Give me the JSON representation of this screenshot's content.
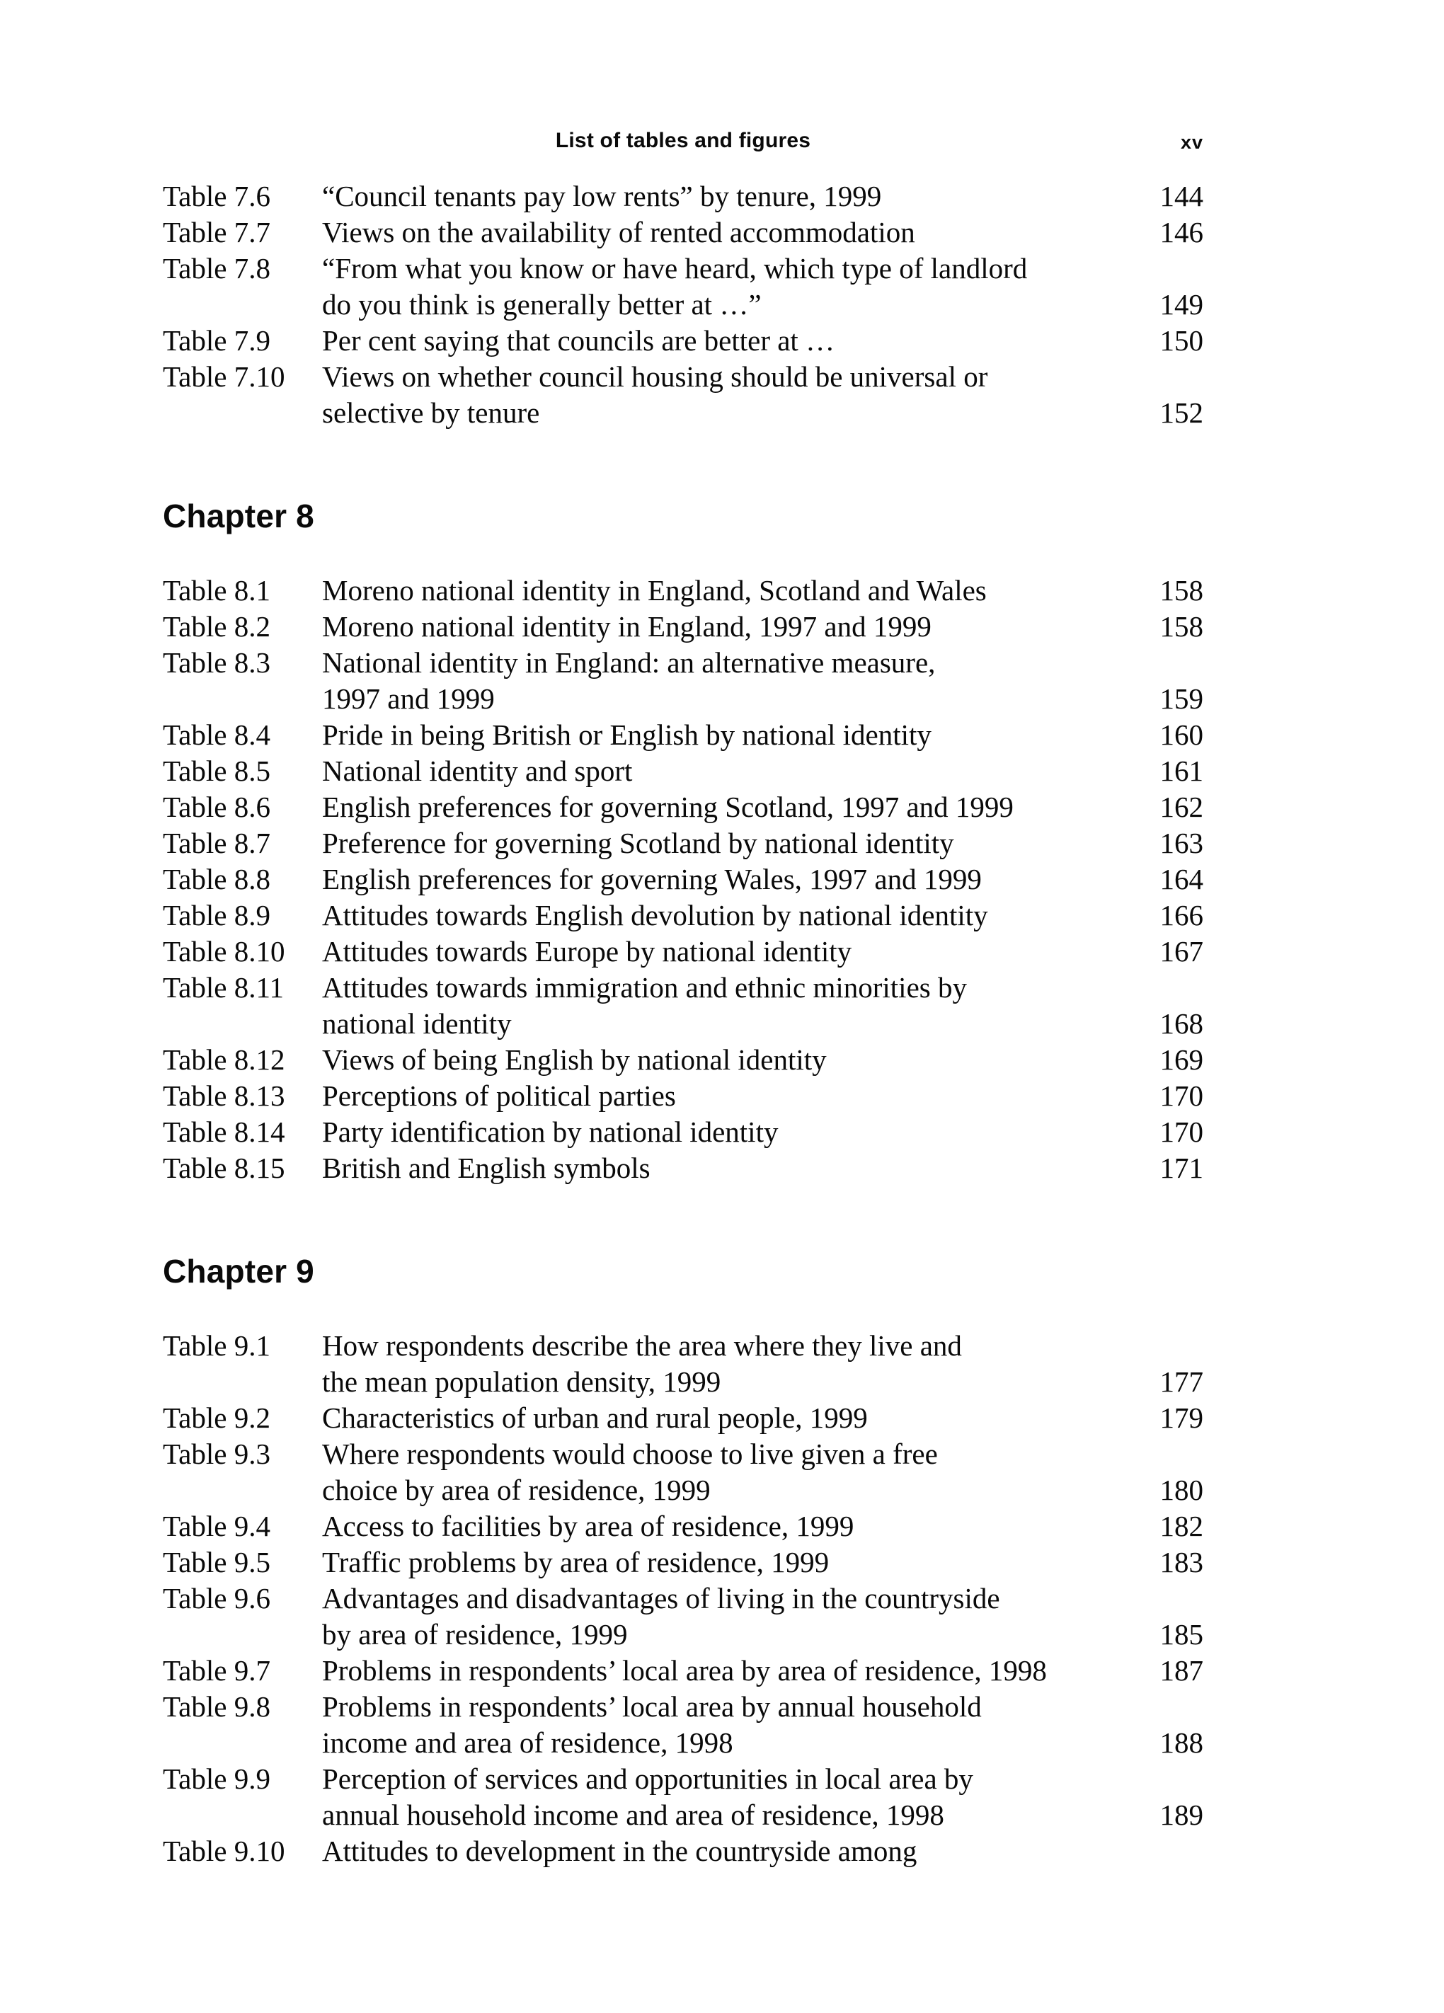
{
  "header": {
    "title": "List of tables and figures",
    "page_number": "xv"
  },
  "sections": [
    {
      "chapter": "",
      "entries": [
        {
          "label": "Table 7.6",
          "lines": [
            "“Council tenants pay low rents” by tenure, 1999"
          ],
          "page": "144"
        },
        {
          "label": "Table 7.7",
          "lines": [
            "Views on the availability of rented accommodation"
          ],
          "page": "146"
        },
        {
          "label": "Table 7.8",
          "lines": [
            "“From what you know or have heard, which type of landlord",
            "do you think is generally better at …”"
          ],
          "page": "149"
        },
        {
          "label": "Table 7.9",
          "lines": [
            "Per cent saying that councils are better at …"
          ],
          "page": "150"
        },
        {
          "label": "Table 7.10",
          "lines": [
            "Views on whether council housing should be universal or",
            "selective by tenure"
          ],
          "page": "152"
        }
      ]
    },
    {
      "chapter": "Chapter 8",
      "entries": [
        {
          "label": "Table 8.1",
          "lines": [
            "Moreno national identity in England, Scotland and Wales"
          ],
          "page": "158"
        },
        {
          "label": "Table 8.2",
          "lines": [
            "Moreno national identity in England, 1997 and 1999"
          ],
          "page": "158"
        },
        {
          "label": "Table 8.3",
          "lines": [
            "National identity in England: an alternative measure,",
            "1997 and 1999"
          ],
          "page": "159"
        },
        {
          "label": "Table 8.4",
          "lines": [
            "Pride in being British or English by national identity"
          ],
          "page": "160"
        },
        {
          "label": "Table 8.5",
          "lines": [
            "National identity and sport"
          ],
          "page": "161"
        },
        {
          "label": "Table 8.6",
          "lines": [
            "English preferences for governing Scotland, 1997 and 1999"
          ],
          "page": "162"
        },
        {
          "label": "Table 8.7",
          "lines": [
            "Preference for governing Scotland by national identity"
          ],
          "page": "163"
        },
        {
          "label": "Table 8.8",
          "lines": [
            "English preferences for governing Wales, 1997 and 1999"
          ],
          "page": "164"
        },
        {
          "label": "Table 8.9",
          "lines": [
            "Attitudes towards English devolution by national identity"
          ],
          "page": "166"
        },
        {
          "label": "Table 8.10",
          "lines": [
            "Attitudes towards Europe by national identity"
          ],
          "page": "167"
        },
        {
          "label": "Table 8.11",
          "lines": [
            "Attitudes towards immigration and ethnic minorities by",
            "national identity"
          ],
          "page": "168"
        },
        {
          "label": "Table 8.12",
          "lines": [
            "Views of being English by national identity"
          ],
          "page": "169"
        },
        {
          "label": "Table 8.13",
          "lines": [
            "Perceptions of political parties"
          ],
          "page": "170"
        },
        {
          "label": "Table 8.14",
          "lines": [
            "Party identification by national identity"
          ],
          "page": "170"
        },
        {
          "label": "Table 8.15",
          "lines": [
            "British and English symbols"
          ],
          "page": "171"
        }
      ]
    },
    {
      "chapter": "Chapter 9",
      "entries": [
        {
          "label": "Table 9.1",
          "lines": [
            "How respondents describe the area where they live and",
            "the mean population density, 1999"
          ],
          "page": "177"
        },
        {
          "label": "Table 9.2",
          "lines": [
            "Characteristics of urban and rural people, 1999"
          ],
          "page": "179"
        },
        {
          "label": "Table 9.3",
          "lines": [
            "Where respondents would choose to live given a free",
            "choice by area of residence, 1999"
          ],
          "page": "180"
        },
        {
          "label": "Table 9.4",
          "lines": [
            "Access to facilities by area of residence, 1999"
          ],
          "page": "182"
        },
        {
          "label": "Table 9.5",
          "lines": [
            "Traffic problems by area of residence, 1999"
          ],
          "page": "183"
        },
        {
          "label": "Table 9.6",
          "lines": [
            "Advantages and disadvantages of living in the countryside",
            "by area of residence, 1999"
          ],
          "page": "185"
        },
        {
          "label": "Table 9.7",
          "lines": [
            "Problems in respondents’ local area by area of residence, 1998"
          ],
          "page": "187"
        },
        {
          "label": "Table 9.8",
          "lines": [
            "Problems in respondents’ local area by annual household",
            "income and area of residence, 1998"
          ],
          "page": "188"
        },
        {
          "label": "Table 9.9",
          "lines": [
            "Perception of services and opportunities in local area by",
            "annual household income and area of residence, 1998"
          ],
          "page": "189"
        },
        {
          "label": "Table 9.10",
          "lines": [
            "Attitudes to development in the countryside among"
          ],
          "page": ""
        }
      ]
    }
  ]
}
